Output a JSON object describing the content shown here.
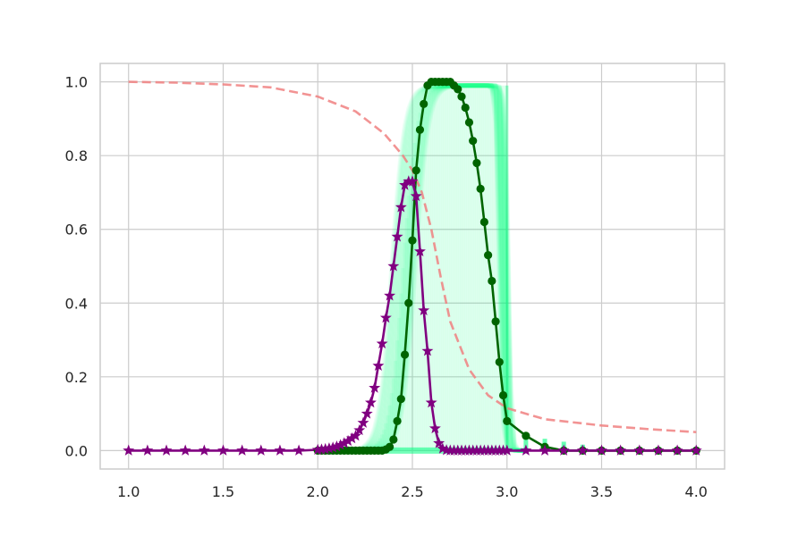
{
  "chart_data": {
    "type": "line",
    "title": "",
    "xlabel": "",
    "ylabel": "",
    "xlim": [
      0.85,
      4.15
    ],
    "ylim": [
      -0.05,
      1.05
    ],
    "grid": true,
    "x_ticks": [
      1.0,
      1.5,
      2.0,
      2.5,
      3.0,
      3.5,
      4.0
    ],
    "x_tick_labels": [
      "1.0",
      "1.5",
      "2.0",
      "2.5",
      "3.0",
      "3.5",
      "4.0"
    ],
    "y_ticks": [
      0.0,
      0.2,
      0.4,
      0.6,
      0.8,
      1.0
    ],
    "y_tick_labels": [
      "0.0",
      "0.2",
      "0.4",
      "0.6",
      "0.8",
      "1.0"
    ],
    "colors": {
      "green_series": "#006400",
      "purple_series": "#800080",
      "dashed_series": "#f08080",
      "band": "#00ff7f",
      "grid": "#cccccc",
      "axes_edge": "#cccccc"
    },
    "band": {
      "x_range": [
        2.3,
        3.0
      ],
      "upper": 0.99,
      "note_values": [
        [
          2.2,
          0.05
        ],
        [
          2.3,
          0.2
        ],
        [
          2.4,
          0.55
        ],
        [
          2.5,
          0.99
        ],
        [
          2.9,
          0.99
        ],
        [
          3.0,
          0.99
        ]
      ]
    },
    "series": [
      {
        "color": "#f08080",
        "style": "dashed",
        "marker": "none",
        "x": [
          1.0,
          1.25,
          1.5,
          1.75,
          2.0,
          2.2,
          2.35,
          2.45,
          2.5,
          2.55,
          2.6,
          2.65,
          2.7,
          2.8,
          2.9,
          3.0,
          3.2,
          3.5,
          3.75,
          4.0
        ],
        "y": [
          1.0,
          0.998,
          0.993,
          0.985,
          0.96,
          0.92,
          0.86,
          0.8,
          0.76,
          0.7,
          0.6,
          0.47,
          0.35,
          0.22,
          0.15,
          0.115,
          0.085,
          0.068,
          0.058,
          0.05
        ]
      },
      {
        "color": "#006400",
        "style": "solid",
        "marker": "circle",
        "x": [
          2.0,
          2.02,
          2.04,
          2.06,
          2.08,
          2.1,
          2.12,
          2.14,
          2.16,
          2.18,
          2.2,
          2.22,
          2.24,
          2.26,
          2.28,
          2.3,
          2.32,
          2.34,
          2.36,
          2.38,
          2.4,
          2.42,
          2.44,
          2.46,
          2.48,
          2.5,
          2.52,
          2.54,
          2.56,
          2.58,
          2.6,
          2.62,
          2.64,
          2.66,
          2.68,
          2.7,
          2.72,
          2.74,
          2.76,
          2.78,
          2.8,
          2.82,
          2.84,
          2.86,
          2.88,
          2.9,
          2.92,
          2.94,
          2.96,
          2.98,
          3.0,
          3.1,
          3.2,
          3.3,
          3.4,
          3.5,
          3.6,
          3.7,
          3.8,
          3.9,
          4.0
        ],
        "y": [
          0.0,
          0.0,
          0.0,
          0.0,
          0.0,
          0.0,
          0.0,
          0.0,
          0.0,
          0.0,
          0.0,
          0.0,
          0.0,
          0.0,
          0.0,
          0.0,
          0.0,
          0.0,
          0.003,
          0.01,
          0.03,
          0.08,
          0.14,
          0.26,
          0.4,
          0.57,
          0.76,
          0.87,
          0.94,
          0.99,
          1.0,
          1.0,
          1.0,
          1.0,
          1.0,
          1.0,
          0.99,
          0.98,
          0.96,
          0.93,
          0.89,
          0.84,
          0.78,
          0.71,
          0.62,
          0.53,
          0.46,
          0.35,
          0.24,
          0.15,
          0.08,
          0.04,
          0.01,
          0.0,
          0.0,
          0.0,
          0.0,
          0.0,
          0.0,
          0.0,
          0.0
        ]
      },
      {
        "color": "#800080",
        "style": "solid",
        "marker": "star",
        "x": [
          1.0,
          1.1,
          1.2,
          1.3,
          1.4,
          1.5,
          1.6,
          1.7,
          1.8,
          1.9,
          2.0,
          2.02,
          2.04,
          2.06,
          2.08,
          2.1,
          2.12,
          2.14,
          2.16,
          2.18,
          2.2,
          2.22,
          2.24,
          2.26,
          2.28,
          2.3,
          2.32,
          2.34,
          2.36,
          2.38,
          2.4,
          2.42,
          2.44,
          2.46,
          2.48,
          2.5,
          2.52,
          2.54,
          2.56,
          2.58,
          2.6,
          2.62,
          2.64,
          2.66,
          2.68,
          2.7,
          2.72,
          2.74,
          2.76,
          2.78,
          2.8,
          2.82,
          2.84,
          2.86,
          2.88,
          2.9,
          2.92,
          2.94,
          2.96,
          2.98,
          3.0,
          3.1,
          3.2,
          3.3,
          3.4,
          3.5,
          3.6,
          3.7,
          3.8,
          3.9,
          4.0
        ],
        "y": [
          0.0,
          0.0,
          0.0,
          0.0,
          0.0,
          0.0,
          0.0,
          0.0,
          0.0,
          0.0,
          0.002,
          0.003,
          0.004,
          0.006,
          0.008,
          0.011,
          0.015,
          0.02,
          0.026,
          0.033,
          0.04,
          0.055,
          0.075,
          0.1,
          0.13,
          0.17,
          0.23,
          0.29,
          0.36,
          0.42,
          0.5,
          0.58,
          0.66,
          0.72,
          0.73,
          0.73,
          0.69,
          0.54,
          0.38,
          0.27,
          0.13,
          0.06,
          0.02,
          0.005,
          0.001,
          0.0,
          0.0,
          0.0,
          0.0,
          0.0,
          0.0,
          0.0,
          0.0,
          0.0,
          0.0,
          0.0,
          0.0,
          0.0,
          0.0,
          0.0,
          0.0,
          0.0,
          0.0,
          0.0,
          0.0,
          0.0,
          0.0,
          0.0,
          0.0,
          0.0,
          0.0
        ]
      }
    ]
  }
}
